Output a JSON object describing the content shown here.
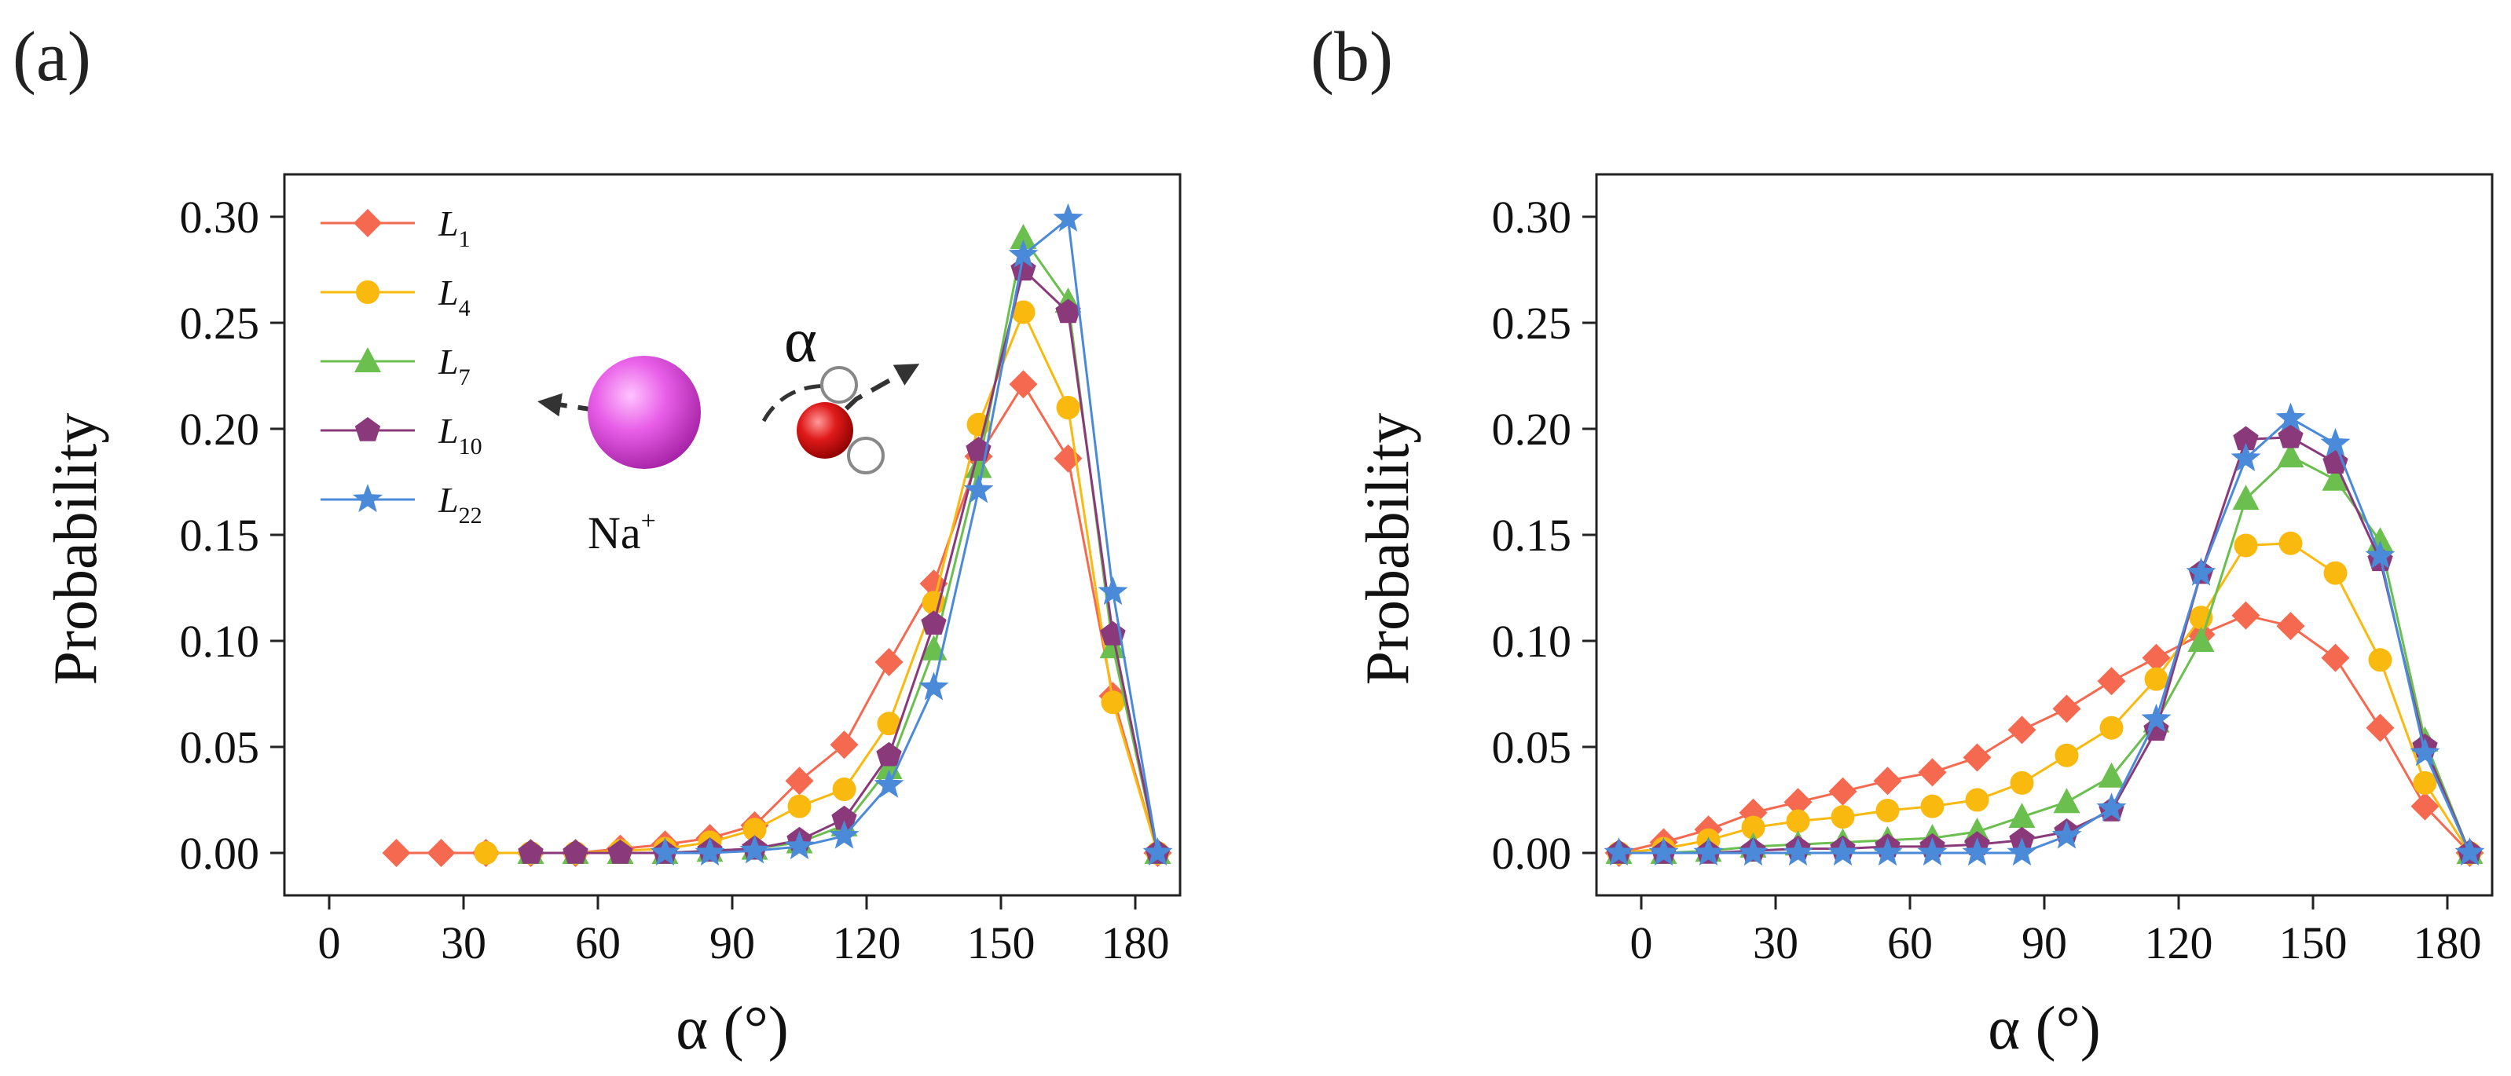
{
  "chart_data": [
    {
      "type": "line",
      "panel_label": "(a)",
      "xlabel": "α (°)",
      "ylabel": "Probability",
      "xlim": [
        -10,
        190
      ],
      "ylim": [
        -0.02,
        0.32
      ],
      "xticks": [
        "0",
        "30",
        "60",
        "90",
        "120",
        "150",
        "180"
      ],
      "yticks": [
        "0.00",
        "0.05",
        "0.10",
        "0.15",
        "0.20",
        "0.25",
        "0.30"
      ],
      "legend_position": "top-left",
      "inset": {
        "ion_label": "Na",
        "ion_charge": "+",
        "angle_label": "α"
      },
      "series": [
        {
          "name": "L1",
          "base": "L",
          "sub": "1",
          "color": "#f4694f",
          "marker": "diamond",
          "x": [
            15,
            25,
            35,
            45,
            55,
            65,
            75,
            85,
            95,
            105,
            115,
            125,
            135,
            145,
            155,
            165,
            175,
            185
          ],
          "y": [
            0,
            0,
            0,
            0,
            0,
            0.002,
            0.004,
            0.007,
            0.013,
            0.034,
            0.051,
            0.09,
            0.127,
            0.187,
            0.221,
            0.186,
            0.074,
            0
          ]
        },
        {
          "name": "L4",
          "base": "L",
          "sub": "4",
          "color": "#f9b90f",
          "marker": "circle",
          "x": [
            35,
            45,
            55,
            65,
            75,
            85,
            95,
            105,
            115,
            125,
            135,
            145,
            155,
            165,
            175,
            185
          ],
          "y": [
            0,
            0,
            0,
            0.001,
            0.002,
            0.005,
            0.011,
            0.022,
            0.03,
            0.061,
            0.118,
            0.202,
            0.255,
            0.21,
            0.071,
            0
          ]
        },
        {
          "name": "L7",
          "base": "L",
          "sub": "7",
          "color": "#6bbf4f",
          "marker": "triangle",
          "x": [
            45,
            55,
            65,
            75,
            85,
            95,
            105,
            115,
            125,
            135,
            145,
            155,
            165,
            175,
            185
          ],
          "y": [
            0,
            0,
            0,
            0,
            0.001,
            0.002,
            0.005,
            0.013,
            0.04,
            0.096,
            0.182,
            0.29,
            0.26,
            0.097,
            0
          ]
        },
        {
          "name": "L10",
          "base": "L",
          "sub": "10",
          "color": "#8a3a7a",
          "marker": "pentagon",
          "x": [
            45,
            55,
            65,
            75,
            85,
            95,
            105,
            115,
            125,
            135,
            145,
            155,
            165,
            175,
            185
          ],
          "y": [
            0,
            0,
            0,
            0,
            0.001,
            0.002,
            0.006,
            0.016,
            0.046,
            0.108,
            0.19,
            0.275,
            0.255,
            0.103,
            0
          ]
        },
        {
          "name": "L22",
          "base": "L",
          "sub": "22",
          "color": "#4a8ad8",
          "marker": "star",
          "x": [
            75,
            85,
            95,
            105,
            115,
            125,
            135,
            145,
            155,
            165,
            175,
            185
          ],
          "y": [
            0,
            0,
            0.001,
            0.003,
            0.008,
            0.032,
            0.078,
            0.171,
            0.282,
            0.299,
            0.123,
            0
          ]
        }
      ]
    },
    {
      "type": "line",
      "panel_label": "(b)",
      "xlabel": "α (°)",
      "ylabel": "Probability",
      "xlim": [
        -10,
        190
      ],
      "ylim": [
        -0.02,
        0.32
      ],
      "xticks": [
        "0",
        "30",
        "60",
        "90",
        "120",
        "150",
        "180"
      ],
      "yticks": [
        "0.00",
        "0.05",
        "0.10",
        "0.15",
        "0.20",
        "0.25",
        "0.30"
      ],
      "series": [
        {
          "name": "L1",
          "color": "#f4694f",
          "marker": "diamond",
          "x": [
            -5,
            5,
            15,
            25,
            35,
            45,
            55,
            65,
            75,
            85,
            95,
            105,
            115,
            125,
            135,
            145,
            155,
            165,
            175,
            185
          ],
          "y": [
            0,
            0.005,
            0.011,
            0.019,
            0.024,
            0.029,
            0.034,
            0.038,
            0.045,
            0.058,
            0.068,
            0.081,
            0.092,
            0.103,
            0.112,
            0.107,
            0.092,
            0.059,
            0.022,
            0
          ]
        },
        {
          "name": "L4",
          "color": "#f9b90f",
          "marker": "circle",
          "x": [
            -5,
            5,
            15,
            25,
            35,
            45,
            55,
            65,
            75,
            85,
            95,
            105,
            115,
            125,
            135,
            145,
            155,
            165,
            175,
            185
          ],
          "y": [
            0,
            0.002,
            0.006,
            0.012,
            0.015,
            0.017,
            0.02,
            0.022,
            0.025,
            0.033,
            0.046,
            0.059,
            0.082,
            0.111,
            0.145,
            0.146,
            0.132,
            0.091,
            0.033,
            0
          ]
        },
        {
          "name": "L7",
          "color": "#6bbf4f",
          "marker": "triangle",
          "x": [
            -5,
            5,
            15,
            25,
            35,
            45,
            55,
            65,
            75,
            85,
            95,
            105,
            115,
            125,
            135,
            145,
            155,
            165,
            175,
            185
          ],
          "y": [
            0,
            0,
            0.001,
            0.003,
            0.004,
            0.005,
            0.006,
            0.007,
            0.01,
            0.017,
            0.024,
            0.036,
            0.062,
            0.1,
            0.167,
            0.187,
            0.176,
            0.147,
            0.053,
            0
          ]
        },
        {
          "name": "L10",
          "color": "#8a3a7a",
          "marker": "pentagon",
          "x": [
            -5,
            5,
            15,
            25,
            35,
            45,
            55,
            65,
            75,
            85,
            95,
            105,
            115,
            125,
            135,
            145,
            155,
            165,
            175,
            185
          ],
          "y": [
            0,
            0,
            0,
            0.001,
            0.002,
            0.002,
            0.003,
            0.003,
            0.004,
            0.006,
            0.01,
            0.02,
            0.058,
            0.132,
            0.195,
            0.196,
            0.184,
            0.138,
            0.05,
            0
          ]
        },
        {
          "name": "L22",
          "color": "#4a8ad8",
          "marker": "star",
          "x": [
            -5,
            5,
            15,
            25,
            35,
            45,
            55,
            65,
            75,
            85,
            95,
            105,
            115,
            125,
            135,
            145,
            155,
            165,
            175,
            185
          ],
          "y": [
            0,
            0,
            0,
            0,
            0,
            0,
            0,
            0,
            0,
            0,
            0.008,
            0.021,
            0.063,
            0.132,
            0.186,
            0.205,
            0.193,
            0.14,
            0.047,
            0
          ]
        }
      ]
    }
  ]
}
